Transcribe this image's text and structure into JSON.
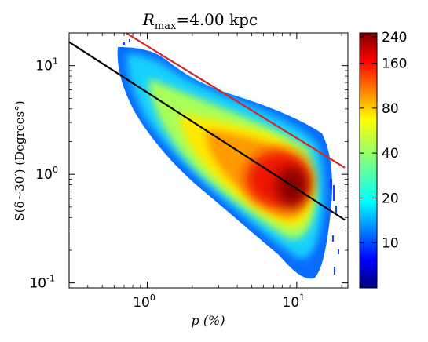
{
  "chart_data": {
    "type": "heatmap",
    "title": "R_max = 4.00 kpc",
    "title_main": "R",
    "title_sub": "max",
    "title_rest": "=4.00 kpc",
    "xlabel": "p (%)",
    "ylabel": "S(δ∼30′) (Degrees°)",
    "x_scale": "log",
    "y_scale": "log",
    "xlim": [
      0.3,
      22
    ],
    "ylim": [
      0.09,
      20
    ],
    "x_ticks": [
      {
        "value": 1,
        "base": "10",
        "exp": "0"
      },
      {
        "value": 10,
        "base": "10",
        "exp": "1"
      }
    ],
    "y_ticks": [
      {
        "value": 0.1,
        "base": "10",
        "exp": "-1"
      },
      {
        "value": 1,
        "base": "10",
        "exp": "0"
      },
      {
        "value": 10,
        "base": "10",
        "exp": "1"
      }
    ],
    "colorbar": {
      "min": 5,
      "max": 255,
      "scale": "log",
      "colormap": "jet",
      "ticks": [
        10,
        20,
        40,
        80,
        160,
        240
      ]
    },
    "lines": [
      {
        "color": "#000000",
        "from": [
          0.3,
          16.5
        ],
        "to": [
          21,
          0.38
        ]
      },
      {
        "color": "#d62728",
        "from": [
          0.72,
          20
        ],
        "to": [
          21,
          1.15
        ]
      }
    ],
    "density": {
      "ridge": [
        [
          0.8,
          7.0
        ],
        [
          1.5,
          4.0
        ],
        [
          3.0,
          2.0
        ],
        [
          6.0,
          1.1
        ],
        [
          10.0,
          0.75
        ],
        [
          15.0,
          0.45
        ]
      ],
      "peak": [
        9.5,
        0.8
      ],
      "peak_count": 240
    },
    "grid": false
  }
}
